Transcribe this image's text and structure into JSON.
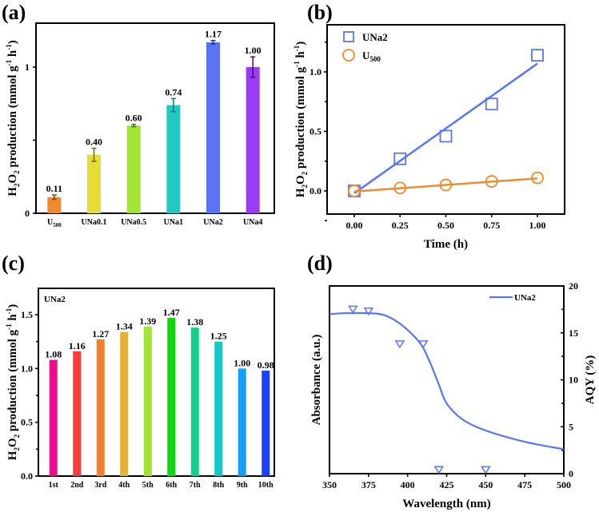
{
  "chart_data": [
    {
      "panel": "(a)",
      "type": "bar",
      "title": "",
      "xlabel": "",
      "ylabel": "H2O2 production (mmol g-1 h-1)",
      "ylabel_parts": {
        "pre": "H",
        "sub1": "2",
        "mid": "O",
        "sub2": "2",
        "post": " production (mmol g",
        "sup1": "-1",
        "post2": " h",
        "sup2": "-1",
        "end": ")"
      },
      "ylim": [
        0,
        1.27
      ],
      "yticks": [
        0,
        0.5,
        1
      ],
      "ytick_labels": [
        "0",
        "",
        "1"
      ],
      "categories": [
        "U500",
        "UNa0.1",
        "UNa0.5",
        "UNa1",
        "UNa2",
        "UNa4"
      ],
      "category_display": [
        {
          "main": "U",
          "sub": "500"
        },
        {
          "main": "UNa0.1",
          "sub": ""
        },
        {
          "main": "UNa0.5",
          "sub": ""
        },
        {
          "main": "UNa1",
          "sub": ""
        },
        {
          "main": "UNa2",
          "sub": ""
        },
        {
          "main": "UNa4",
          "sub": ""
        }
      ],
      "values": [
        0.11,
        0.4,
        0.6,
        0.74,
        1.17,
        1.0
      ],
      "value_labels": [
        "0.11",
        "0.40",
        "0.60",
        "0.74",
        "1.17",
        "1.00"
      ],
      "errors": [
        0.015,
        0.045,
        0.008,
        0.045,
        0.012,
        0.07
      ],
      "colors": [
        "#f08a2c",
        "#e6dc35",
        "#a2e433",
        "#22c9c3",
        "#5a74f8",
        "#9a3cf2"
      ],
      "error_colors": [
        "#8a3d00",
        "#6b6600",
        "#4a7a10",
        "#0d7a78",
        "#1b2fb8",
        "#4a0a8a"
      ],
      "grid": false
    },
    {
      "panel": "(b)",
      "type": "scatter",
      "title": "",
      "xlabel": "Time (h)",
      "ylabel": "H2O2 production (mmol g-1 h-1)",
      "xlim": [
        -0.13,
        1.15
      ],
      "ylim": [
        -0.2,
        1.4
      ],
      "xticks": [
        0,
        0.25,
        0.5,
        0.75,
        1.0
      ],
      "xtick_labels": [
        "0.00",
        "0.25",
        "0.50",
        "0.75",
        "1.00"
      ],
      "yticks": [
        0,
        0.5,
        1.0
      ],
      "ytick_labels": [
        "0.0",
        "0.5",
        "1.0"
      ],
      "legend_position": "top-left",
      "series": [
        {
          "name": "UNa2",
          "marker": "square",
          "color": "#5a74f8",
          "x": [
            0,
            0.25,
            0.5,
            0.75,
            1.0
          ],
          "y": [
            0.0,
            0.27,
            0.46,
            0.73,
            1.14
          ],
          "fit": {
            "x": [
              0,
              1.0
            ],
            "y": [
              -0.02,
              1.07
            ]
          }
        },
        {
          "name": "U500",
          "name_display": {
            "main": "U",
            "sub": "500"
          },
          "marker": "circle",
          "color": "#f08a2c",
          "x": [
            0,
            0.25,
            0.5,
            0.75,
            1.0
          ],
          "y": [
            0.0,
            0.025,
            0.05,
            0.08,
            0.11
          ],
          "fit": {
            "x": [
              0,
              1.0
            ],
            "y": [
              -0.005,
              0.105
            ]
          }
        }
      ],
      "grid": false
    },
    {
      "panel": "(c)",
      "type": "bar",
      "title": "",
      "annotation": "UNa2",
      "xlabel": "",
      "ylabel": "H2O2 production (mmol g-1 h-1)",
      "ylim": [
        0,
        1.75
      ],
      "yticks": [
        0,
        0.5,
        1.0,
        1.5
      ],
      "ytick_labels": [
        "0.0",
        "0.5",
        "1.0",
        "1.5"
      ],
      "categories": [
        "1st",
        "2nd",
        "3rd",
        "4th",
        "5th",
        "6th",
        "7th",
        "8th",
        "9th",
        "10th"
      ],
      "values": [
        1.08,
        1.16,
        1.27,
        1.34,
        1.39,
        1.47,
        1.38,
        1.25,
        1.0,
        0.98
      ],
      "value_labels": [
        "1.08",
        "1.16",
        "1.27",
        "1.34",
        "1.39",
        "1.47",
        "1.38",
        "1.25",
        "1.00",
        "0.98"
      ],
      "colors": [
        "#ec0e8a",
        "#fa3c3c",
        "#f0812a",
        "#e6b030",
        "#a2e433",
        "#10d810",
        "#12d08a",
        "#12c8c8",
        "#14a0f8",
        "#1c40f4"
      ],
      "grid": false
    },
    {
      "panel": "(d)",
      "type": "line",
      "title": "",
      "xlabel": "Wavelength (nm)",
      "ylabel": "Absorbance (a.u.)",
      "y2label": "AQY (%)",
      "xlim": [
        350,
        500
      ],
      "xticks": [
        350,
        375,
        400,
        425,
        450,
        475,
        500
      ],
      "xtick_labels": [
        "350",
        "375",
        "400",
        "425",
        "450",
        "475",
        "500"
      ],
      "y2lim": [
        0,
        20
      ],
      "y2ticks": [
        0,
        5,
        10,
        15,
        20
      ],
      "y2tick_labels": [
        "0",
        "5",
        "10",
        "15",
        "20"
      ],
      "legend_position": "top-right",
      "series": [
        {
          "name": "UNa2",
          "kind": "absorbance-line",
          "color": "#5a74f8",
          "axis_note": "relative absorbance, plotted in right-axis units",
          "x": [
            350,
            360,
            375,
            385,
            395,
            405,
            410,
            415,
            420,
            425,
            435,
            450,
            475,
            500
          ],
          "y": [
            17.0,
            17.1,
            17.1,
            16.9,
            16.0,
            14.5,
            13.4,
            11.6,
            9.5,
            7.5,
            5.8,
            4.6,
            3.4,
            2.6
          ]
        },
        {
          "name": "AQY",
          "kind": "aqy-markers",
          "marker": "triangle-down",
          "color": "#5a74f8",
          "x": [
            365,
            375,
            395,
            410,
            420,
            450
          ],
          "y": [
            17.5,
            17.3,
            13.8,
            13.8,
            0.4,
            0.4
          ]
        }
      ],
      "grid": false
    }
  ],
  "panel_labels": [
    "(a)",
    "(b)",
    "(c)",
    "(d)"
  ]
}
